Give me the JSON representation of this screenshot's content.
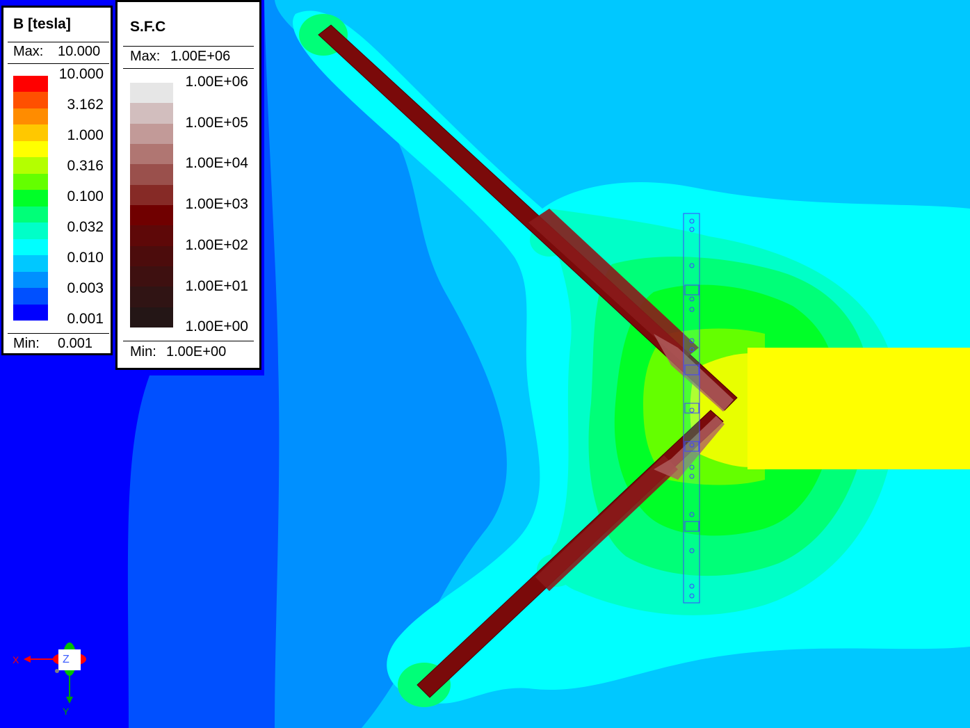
{
  "legend_b": {
    "title": "B [tesla]",
    "max_label": "Max:",
    "max_value": "10.000",
    "min_label": "Min:",
    "min_value": "0.001",
    "ticks": [
      "10.000",
      "3.162",
      "1.000",
      "0.316",
      "0.100",
      "0.032",
      "0.010",
      "0.003",
      "0.001"
    ],
    "colors": [
      "#ff0000",
      "#ff5000",
      "#ff8c00",
      "#ffc800",
      "#ffff00",
      "#b4ff00",
      "#64ff00",
      "#00ff28",
      "#00ff78",
      "#00ffc8",
      "#00ffff",
      "#00c8ff",
      "#0090ff",
      "#0050ff",
      "#0000ff"
    ]
  },
  "legend_sfc": {
    "title": "S.F.C",
    "max_label": "Max:",
    "max_value": "1.00E+06",
    "min_label": "Min:",
    "min_value": "1.00E+00",
    "ticks": [
      "1.00E+06",
      "1.00E+05",
      "1.00E+04",
      "1.00E+03",
      "1.00E+02",
      "1.00E+01",
      "1.00E+00"
    ],
    "colors": [
      "#e6e6e6",
      "#d2bebe",
      "#c29a98",
      "#b07672",
      "#9a504c",
      "#862a26",
      "#700000",
      "#5e0808",
      "#4c0c0c",
      "#3e1010",
      "#301414",
      "#241616"
    ]
  },
  "axes": {
    "x_label": "X",
    "y_label": "Y",
    "z_label": "Z"
  },
  "colors": {
    "field_darkblue": "#0000ff",
    "field_blue": "#0050ff",
    "field_midblue": "#0090ff",
    "field_lightblue": "#00c8ff",
    "field_cyan": "#00ffff",
    "field_aqua": "#00ffc8",
    "field_lightgreen": "#00ff78",
    "field_green": "#00ff28",
    "field_yellowgreen": "#64ff00",
    "field_yellow": "#ffff00",
    "coil": "#7a0a0a"
  }
}
